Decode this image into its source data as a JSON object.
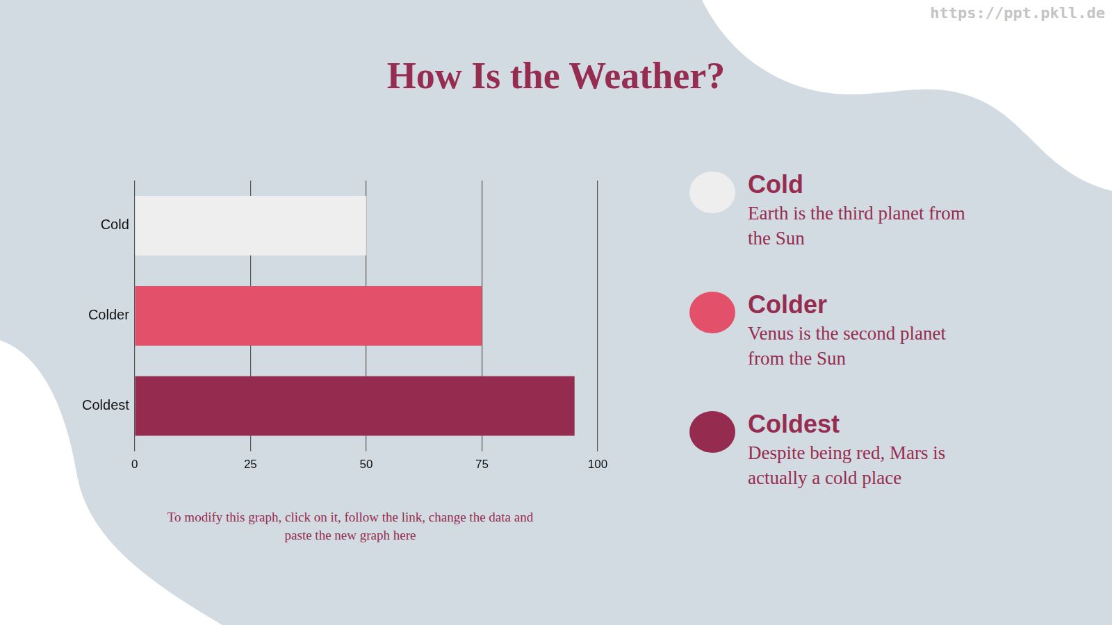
{
  "chart_data": {
    "type": "bar",
    "title": "How Is the Weather?",
    "orientation": "horizontal",
    "categories": [
      "Cold",
      "Colder",
      "Coldest"
    ],
    "values": [
      50,
      75,
      95
    ],
    "colors": [
      "#eeeeee",
      "#e3506a",
      "#952b4e"
    ],
    "xlim": [
      0,
      100
    ],
    "xticks": [
      0,
      25,
      50,
      75,
      100
    ],
    "grid": true
  },
  "side_panel": [
    {
      "heading": "Cold",
      "text": "Earth is the third planet from the Sun"
    },
    {
      "heading": "Colder",
      "text": "Venus is the second planet from the Sun"
    },
    {
      "heading": "Coldest",
      "text": "Despite being red, Mars is actually a cold place"
    }
  ],
  "note": "To modify this graph, click on it, follow the link, change the data and paste the new graph here",
  "watermark": "https://ppt.pkll.de"
}
